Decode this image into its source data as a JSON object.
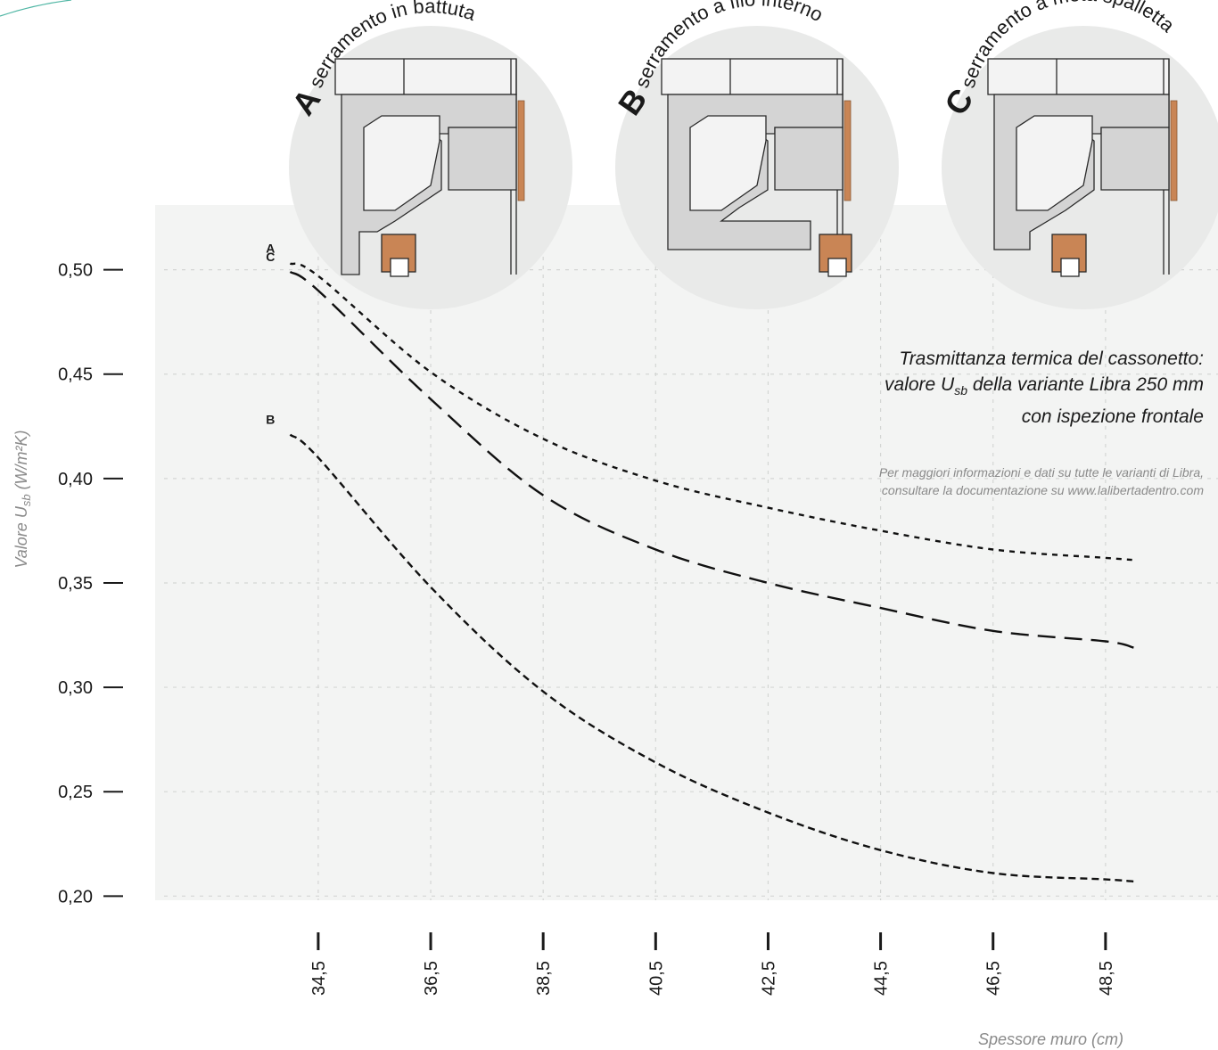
{
  "chart_data": {
    "type": "line",
    "ylabel": "Valore U",
    "ylabel_sub": "sb",
    "ylabel_unit": " (W/m²K)",
    "xlabel": "Spessore muro (cm)",
    "x": [
      34,
      34.5,
      36.5,
      38.5,
      40.5,
      42.5,
      44.5,
      46.5,
      48.5,
      49
    ],
    "xticks": [
      "34,5",
      "36,5",
      "38,5",
      "40,5",
      "42,5",
      "44,5",
      "46,5",
      "48,5"
    ],
    "xtick_values": [
      34.5,
      36.5,
      38.5,
      40.5,
      42.5,
      44.5,
      46.5,
      48.5
    ],
    "xlim": [
      31.6,
      50.5
    ],
    "yticks": [
      "0,20",
      "0,25",
      "0,30",
      "0,35",
      "0,40",
      "0,45",
      "0,50"
    ],
    "ytick_values": [
      0.2,
      0.25,
      0.3,
      0.35,
      0.4,
      0.45,
      0.5
    ],
    "ylim": [
      0.198,
      0.531
    ],
    "grid": true,
    "series": [
      {
        "name": "A",
        "dash": "6,6",
        "values": [
          0.503,
          0.497,
          0.451,
          0.419,
          0.399,
          0.386,
          0.375,
          0.366,
          0.362,
          0.361
        ]
      },
      {
        "name": "C",
        "dash": "20,10",
        "values": [
          0.499,
          0.49,
          0.438,
          0.392,
          0.366,
          0.35,
          0.338,
          0.327,
          0.322,
          0.319
        ]
      },
      {
        "name": "B",
        "dash": "8,5",
        "values": [
          0.421,
          0.41,
          0.348,
          0.298,
          0.264,
          0.24,
          0.222,
          0.211,
          0.208,
          0.207
        ]
      }
    ]
  },
  "details": [
    {
      "letter": "A",
      "title": "serramento in battuta"
    },
    {
      "letter": "B",
      "title": "serramento a filo interno"
    },
    {
      "letter": "C",
      "title": "serramento a metà spalletta"
    }
  ],
  "note": {
    "title_line1": "Trasmittanza termica del cassonetto:",
    "title_line2_pre": "valore U",
    "title_line2_sub": "sb",
    "title_line2_post": " della variante Libra 250 mm",
    "title_line3": "con ispezione frontale",
    "sub_line1": "Per maggiori informazioni e dati su tutte le varianti di Libra,",
    "sub_line2": "consultare la documentazione su www.lalibertadentro.com"
  },
  "colors": {
    "panel": "#f3f4f3",
    "grid": "#d4d6d4",
    "circle": "#e9eae9",
    "profile": "#d4d4d4",
    "wood": "#c98555"
  }
}
